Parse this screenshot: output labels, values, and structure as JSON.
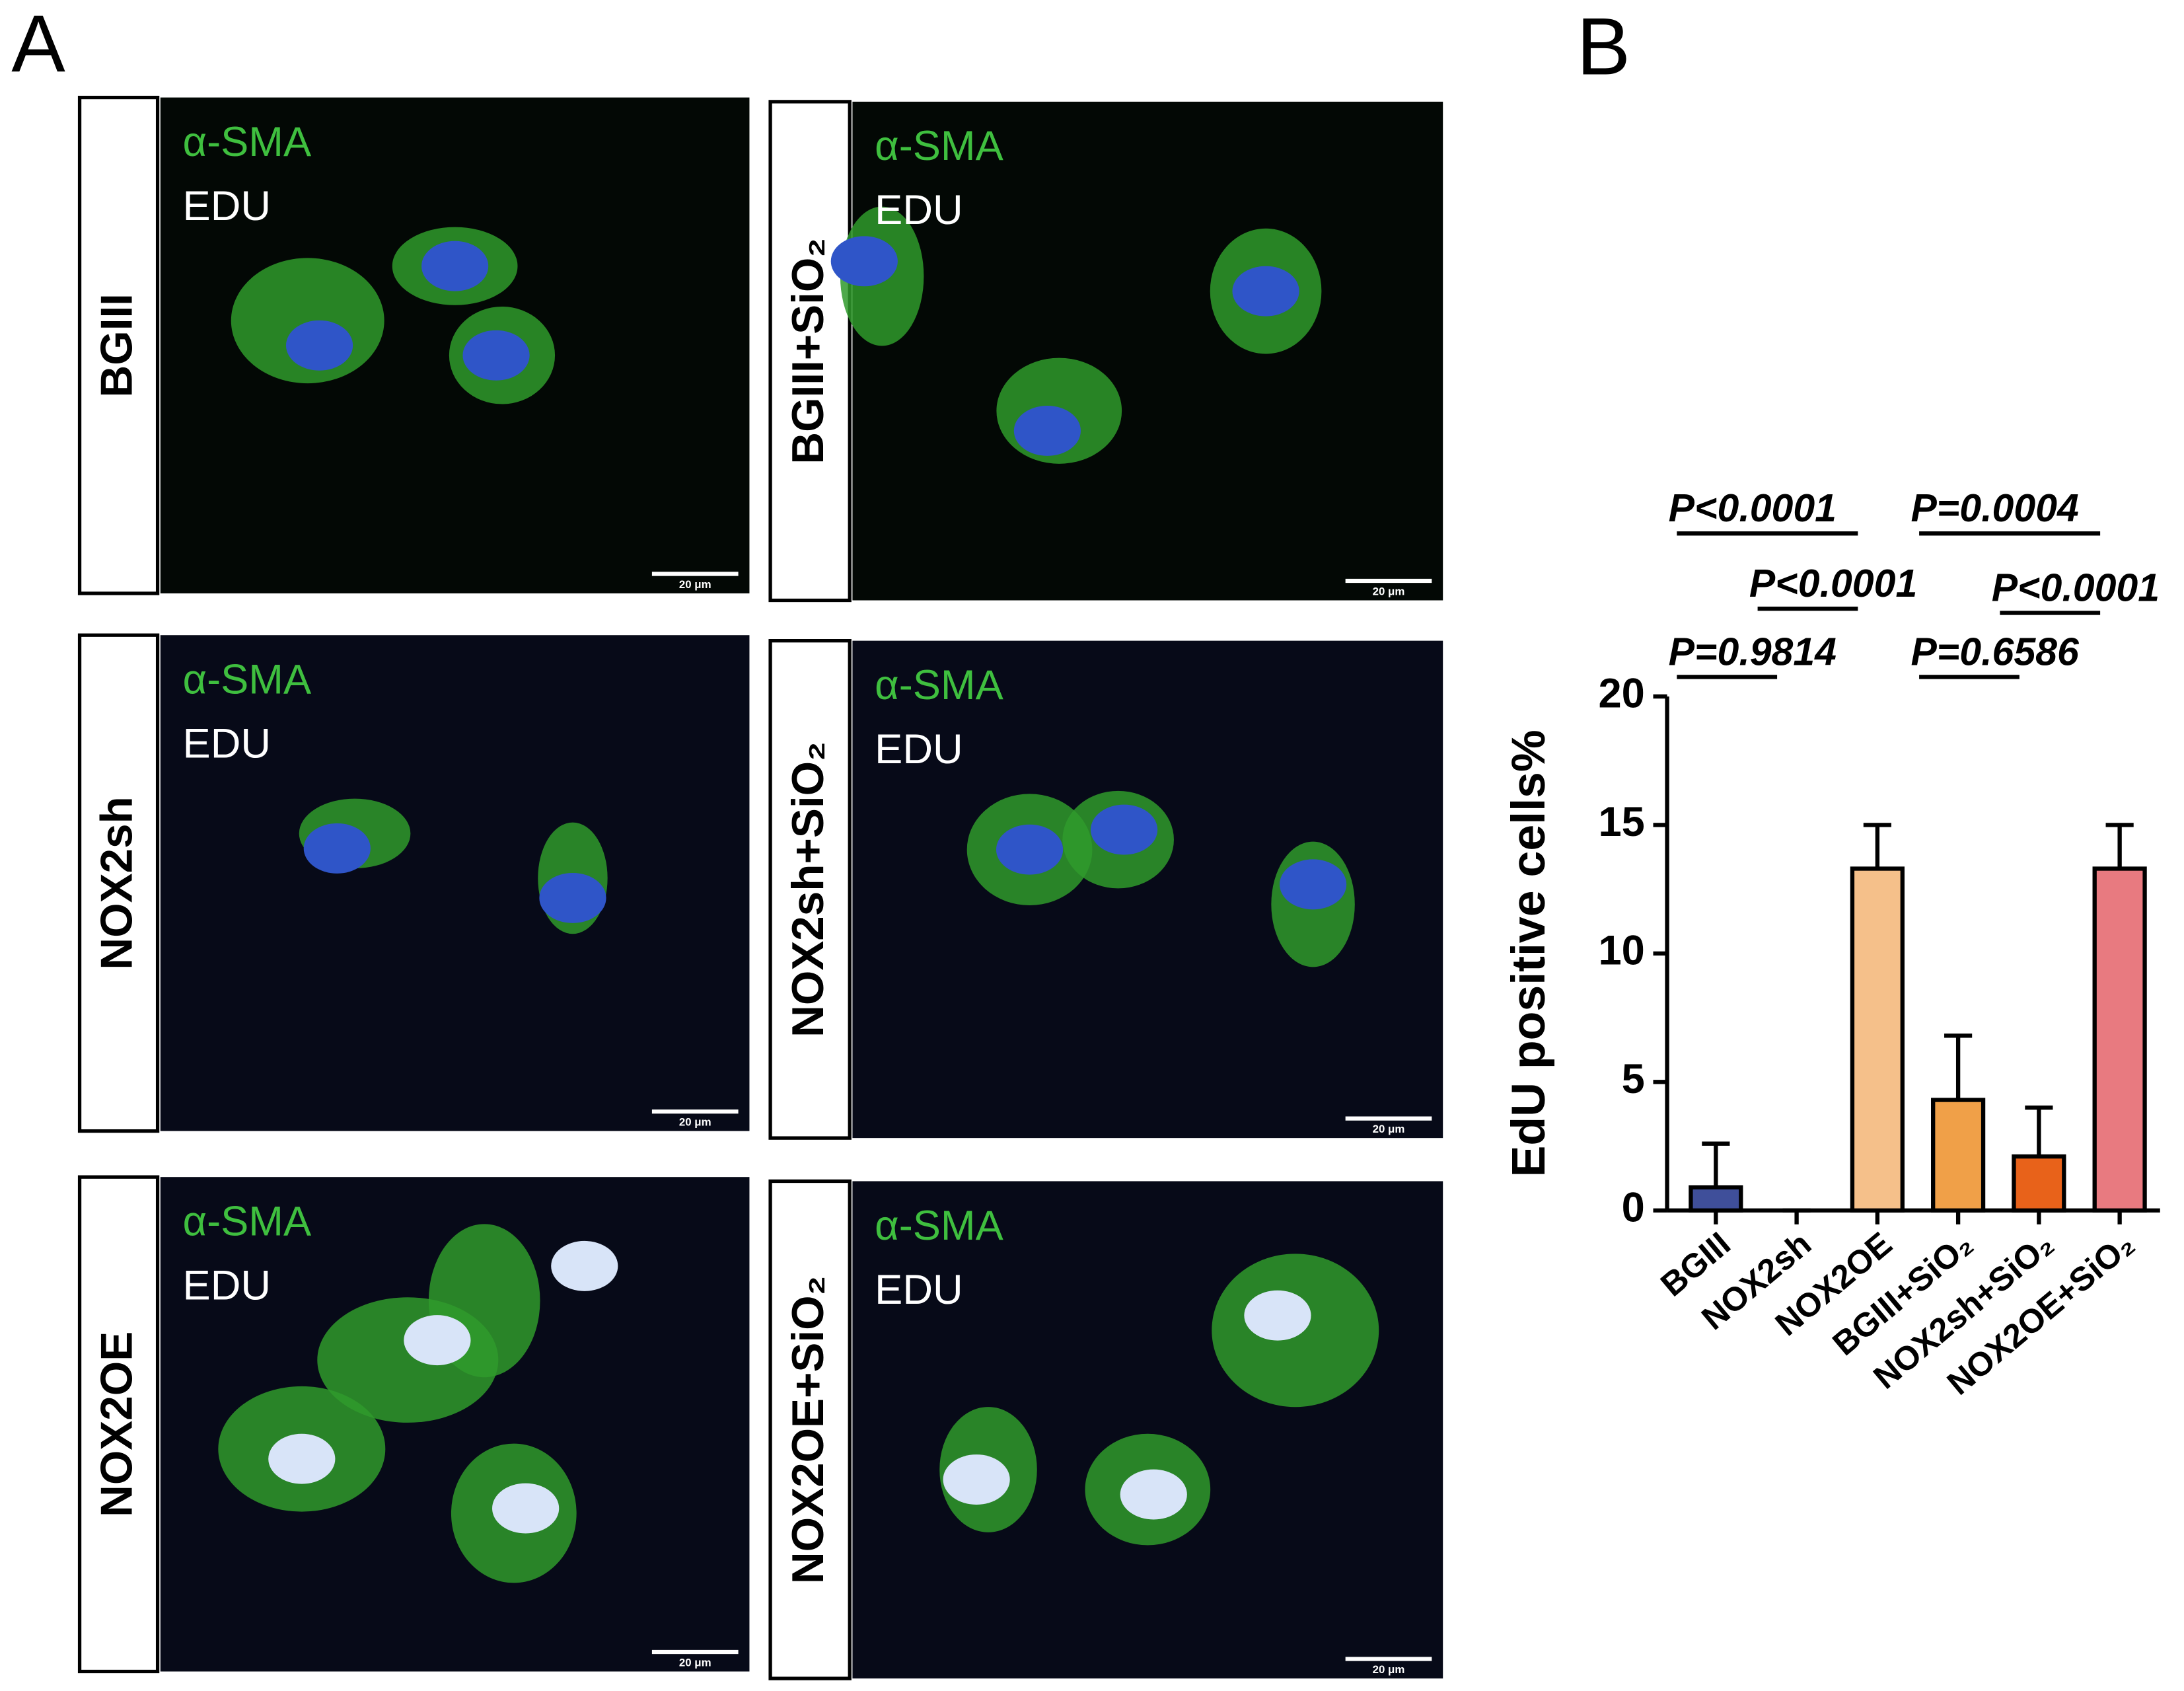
{
  "panel_a": {
    "label": "A",
    "panels": [
      {
        "name": "BGIII",
        "stain_1": "α-SMA",
        "stain_2": "EDU",
        "scale": "20 μm"
      },
      {
        "name": "BGIII+SiO₂",
        "stain_1": "α-SMA",
        "stain_2": "EDU",
        "scale": "20 μm"
      },
      {
        "name": "NOX2sh",
        "stain_1": "α-SMA",
        "stain_2": "EDU",
        "scale": "20 μm"
      },
      {
        "name": "NOX2sh+SiO₂",
        "stain_1": "α-SMA",
        "stain_2": "EDU",
        "scale": "20 μm"
      },
      {
        "name": "NOX2OE",
        "stain_1": "α-SMA",
        "stain_2": "EDU",
        "scale": "20 μm"
      },
      {
        "name": "NOX2OE+SiO₂",
        "stain_1": "α-SMA",
        "stain_2": "EDU",
        "scale": "20 μm"
      }
    ]
  },
  "chart_data": {
    "type": "bar",
    "panel_label": "B",
    "y_label": "EdU positive cells%",
    "categories": [
      "BGIII",
      "NOX2sh",
      "NOX2OE",
      "BGIII+SiO₂",
      "NOX2sh+SiO₂",
      "NOX2OE+SiO₂"
    ],
    "values": [
      0.9,
      0,
      13.3,
      4.3,
      2.1,
      13.3
    ],
    "errors": [
      1.7,
      0,
      1.7,
      2.5,
      1.9,
      1.7
    ],
    "colors": [
      "#3f4f9a",
      "#ffffff",
      "#f5c08a",
      "#f0a048",
      "#e8621a",
      "#e87a80"
    ],
    "ylim": [
      0,
      20
    ],
    "yticks": [
      0,
      5,
      10,
      15,
      20
    ],
    "comparisons": [
      "P<0.0001",
      "P<0.0001",
      "P=0.9814",
      "P=0.0004",
      "P<0.0001",
      "P=0.6586"
    ]
  }
}
